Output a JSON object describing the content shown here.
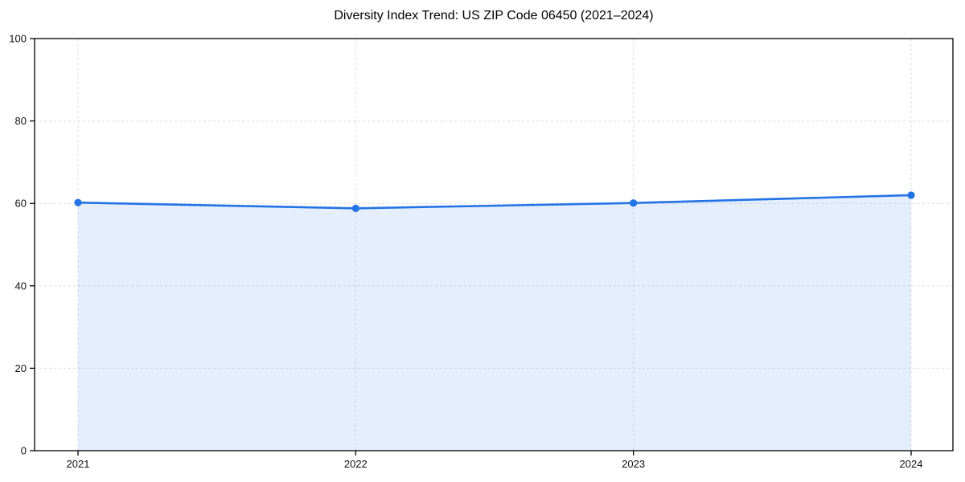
{
  "chart_data": {
    "type": "area",
    "title": "Diversity Index Trend: US ZIP Code 06450 (2021–2024)",
    "categories": [
      "2021",
      "2022",
      "2023",
      "2024"
    ],
    "values": [
      60.2,
      58.8,
      60.1,
      62.0
    ],
    "xlabel": "",
    "ylabel": "",
    "ylim": [
      0,
      100
    ],
    "yticks": [
      0,
      20,
      40,
      60,
      80,
      100
    ],
    "grid": true,
    "grid_style": "dashed",
    "legend": "none",
    "marker": "circle",
    "colors": {
      "line": "#2273e6",
      "marker": "#2273e6",
      "fill": "#2273e6",
      "fill_opacity": 0.12,
      "grid": "#dcdcdc",
      "axis": "#000000",
      "text": "#111111",
      "background": "#ffffff"
    }
  }
}
